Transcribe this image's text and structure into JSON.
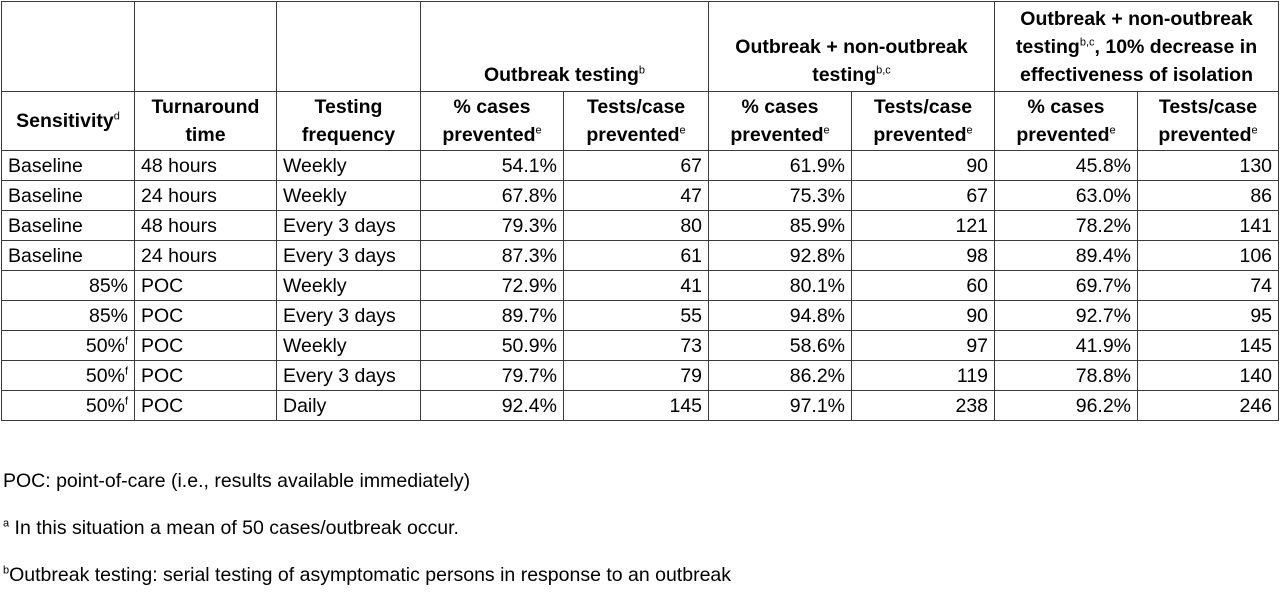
{
  "table": {
    "groups": {
      "outbreak": "Outbreak testing",
      "outbreak_sup": "b",
      "outbreak_non": "Outbreak + non-outbreak testing",
      "outbreak_non_sup": "b,c",
      "isolation_line1": "Outbreak + non-outbreak testing",
      "isolation_sup": "b,c",
      "isolation_line2": ", 10% decrease in effectiveness of isolation"
    },
    "headers": {
      "sensitivity": "Sensitivity",
      "sensitivity_sup": "d",
      "turnaround": "Turnaround time",
      "frequency": "Testing frequency",
      "pct_cases": "% cases prevented",
      "pct_sup": "e",
      "tests_case": "Tests/case prevented",
      "tests_sup": "e"
    },
    "rows": [
      {
        "sensitivity": "Baseline",
        "sup": "",
        "turnaround": "48 hours",
        "frequency": "Weekly",
        "o_pct": "54.1%",
        "o_tests": "67",
        "on_pct": "61.9%",
        "on_tests": "90",
        "iso_pct": "45.8%",
        "iso_tests": "130"
      },
      {
        "sensitivity": "Baseline",
        "sup": "",
        "turnaround": "24 hours",
        "frequency": "Weekly",
        "o_pct": "67.8%",
        "o_tests": "47",
        "on_pct": "75.3%",
        "on_tests": "67",
        "iso_pct": "63.0%",
        "iso_tests": "86"
      },
      {
        "sensitivity": "Baseline",
        "sup": "",
        "turnaround": "48 hours",
        "frequency": "Every 3 days",
        "o_pct": "79.3%",
        "o_tests": "80",
        "on_pct": "85.9%",
        "on_tests": "121",
        "iso_pct": "78.2%",
        "iso_tests": "141"
      },
      {
        "sensitivity": "Baseline",
        "sup": "",
        "turnaround": "24 hours",
        "frequency": "Every 3 days",
        "o_pct": "87.3%",
        "o_tests": "61",
        "on_pct": "92.8%",
        "on_tests": "98",
        "iso_pct": "89.4%",
        "iso_tests": "106"
      },
      {
        "sensitivity": "85%",
        "sup": "",
        "turnaround": "POC",
        "frequency": "Weekly",
        "o_pct": "72.9%",
        "o_tests": "41",
        "on_pct": "80.1%",
        "on_tests": "60",
        "iso_pct": "69.7%",
        "iso_tests": "74"
      },
      {
        "sensitivity": "85%",
        "sup": "",
        "turnaround": "POC",
        "frequency": "Every 3 days",
        "o_pct": "89.7%",
        "o_tests": "55",
        "on_pct": "94.8%",
        "on_tests": "90",
        "iso_pct": "92.7%",
        "iso_tests": "95"
      },
      {
        "sensitivity": "50%",
        "sup": "f",
        "turnaround": "POC",
        "frequency": "Weekly",
        "o_pct": "50.9%",
        "o_tests": "73",
        "on_pct": "58.6%",
        "on_tests": "97",
        "iso_pct": "41.9%",
        "iso_tests": "145"
      },
      {
        "sensitivity": "50%",
        "sup": "f",
        "turnaround": "POC",
        "frequency": "Every 3 days",
        "o_pct": "79.7%",
        "o_tests": "79",
        "on_pct": "86.2%",
        "on_tests": "119",
        "iso_pct": "78.8%",
        "iso_tests": "140"
      },
      {
        "sensitivity": "50%",
        "sup": "f",
        "turnaround": "POC",
        "frequency": "Daily",
        "o_pct": "92.4%",
        "o_tests": "145",
        "on_pct": "97.1%",
        "on_tests": "238",
        "iso_pct": "96.2%",
        "iso_tests": "246"
      }
    ]
  },
  "notes": {
    "poc": "POC: point-of-care (i.e., results available immediately)",
    "a_sup": "a",
    "a_text": " In this situation a mean of 50 cases/outbreak occur.",
    "b_sup": "b",
    "b_text": "Outbreak testing: serial testing of asymptomatic persons in response to an outbreak"
  }
}
